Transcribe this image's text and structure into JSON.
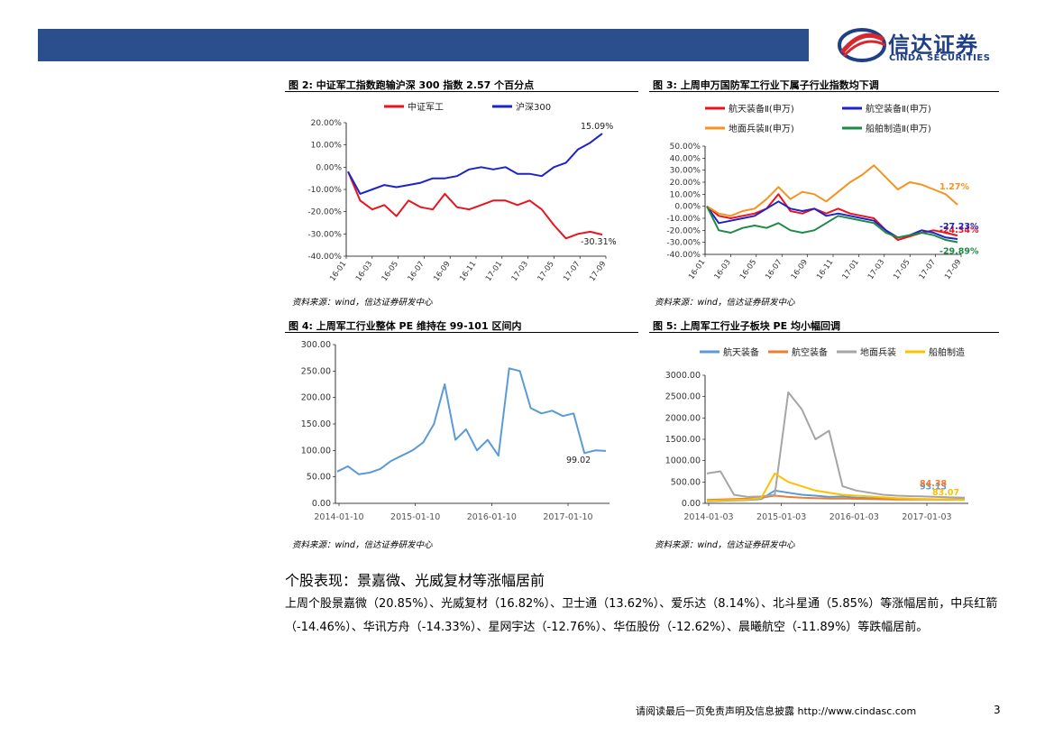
{
  "header": {
    "logo_cn": "信达证券",
    "logo_en": "CINDA SECURITIES"
  },
  "figures": [
    {
      "title": "图 2:  中证军工指数跑输沪深 300 指数 2.57 个百分点",
      "source": "资料来源：wind，信达证券研发中心"
    },
    {
      "title": "图 3:  上周申万国防军工行业下属子行业指数均下调",
      "source": "资料来源：wind，信达证券研发中心"
    },
    {
      "title": "图 4:  上周军工行业整体 PE 维持在 99-101 区间内",
      "source": "资料来源：wind，信达证券研发中心"
    },
    {
      "title": "图 5:  上周军工行业子板块 PE 均小幅回调",
      "source": "资料来源：wind，信达证券研发中心"
    }
  ],
  "section": {
    "heading": "个股表现：景嘉微、光威复材等涨幅居前",
    "body": "上周个股景嘉微（20.85%）、光威复材（16.82%）、卫士通（13.62%）、爱乐达（8.14%）、北斗星通（5.85%）等涨幅居前，中兵红箭（-14.46%）、华讯方舟（-14.33%）、星网宇达（-12.76%）、华伍股份（-12.62%）、晨曦航空（-11.89%）等跌幅居前。"
  },
  "footer": {
    "disclaimer": "请阅读最后一页免责声明及信息披露  http://www.cindasc.com",
    "page": "3"
  },
  "chart_data": [
    {
      "type": "line",
      "legend_position": "top",
      "x_ticks": [
        "16-01",
        "16-03",
        "16-05",
        "16-07",
        "16-09",
        "16-11",
        "17-01",
        "17-03",
        "17-05",
        "17-07",
        "17-09"
      ],
      "y_ticks": [
        "20.00%",
        "10.00%",
        "0.00%",
        "-10.00%",
        "-20.00%",
        "-30.00%",
        "-40.00%"
      ],
      "ylim": [
        -40,
        20
      ],
      "series": [
        {
          "name": "中证军工",
          "color": "#e8141e",
          "end_label": "-30.31%",
          "x": [
            0,
            1,
            2,
            3,
            4,
            5,
            6,
            7,
            8,
            9,
            10,
            11,
            12,
            13,
            14,
            15,
            16,
            17,
            18,
            19,
            20,
            21
          ],
          "values": [
            -2,
            -15,
            -19,
            -17,
            -22,
            -15,
            -18,
            -19,
            -12,
            -18,
            -19,
            -17,
            -15,
            -15,
            -17,
            -15,
            -19,
            -26,
            -32,
            -30,
            -29,
            -30.31
          ]
        },
        {
          "name": "沪深300",
          "color": "#1e23c8",
          "end_label": "15.09%",
          "x": [
            0,
            1,
            2,
            3,
            4,
            5,
            6,
            7,
            8,
            9,
            10,
            11,
            12,
            13,
            14,
            15,
            16,
            17,
            18,
            19,
            20,
            21
          ],
          "values": [
            -2,
            -12,
            -10,
            -8,
            -9,
            -8,
            -7,
            -5,
            -5,
            -4,
            -1,
            0,
            -1,
            0,
            -3,
            -3,
            -4,
            0,
            2,
            8,
            11,
            15.09
          ]
        }
      ]
    },
    {
      "type": "line",
      "legend_position": "top",
      "x_ticks": [
        "16-01",
        "16-03",
        "16-05",
        "16-07",
        "16-09",
        "16-11",
        "17-01",
        "17-03",
        "17-05",
        "17-07",
        "17-09"
      ],
      "y_ticks": [
        "50.00%",
        "40.00%",
        "30.00%",
        "20.00%",
        "10.00%",
        "0.00%",
        "-10.00%",
        "-20.00%",
        "-30.00%",
        "-40.00%"
      ],
      "ylim": [
        -40,
        50
      ],
      "series": [
        {
          "name": "航天装备Ⅱ(申万)",
          "color": "#e8141e",
          "end_label": "-24.34%",
          "x": [
            0,
            1,
            2,
            3,
            4,
            5,
            6,
            7,
            8,
            9,
            10,
            11,
            12,
            13,
            14,
            15,
            16,
            17,
            18,
            19,
            20,
            21
          ],
          "values": [
            0,
            -8,
            -10,
            -8,
            -6,
            -2,
            10,
            -4,
            -6,
            -2,
            -6,
            -2,
            -6,
            -8,
            -10,
            -20,
            -28,
            -25,
            -22,
            -20,
            -22,
            -24.34
          ]
        },
        {
          "name": "航空装备Ⅱ(申万)",
          "color": "#1e23c8",
          "end_label": "-27.23%",
          "x": [
            0,
            1,
            2,
            3,
            4,
            5,
            6,
            7,
            8,
            9,
            10,
            11,
            12,
            13,
            14,
            15,
            16,
            17,
            18,
            19,
            20,
            21
          ],
          "values": [
            0,
            -14,
            -12,
            -10,
            -8,
            -2,
            4,
            -2,
            -4,
            -2,
            -8,
            -6,
            -8,
            -10,
            -12,
            -20,
            -26,
            -24,
            -20,
            -22,
            -26,
            -27.23
          ]
        },
        {
          "name": "地面兵装Ⅱ(申万)",
          "color": "#f7921e",
          "end_label": "1.27%",
          "x": [
            0,
            1,
            2,
            3,
            4,
            5,
            6,
            7,
            8,
            9,
            10,
            11,
            12,
            13,
            14,
            15,
            16,
            17,
            18,
            19,
            20,
            21
          ],
          "values": [
            0,
            -6,
            -8,
            -4,
            -2,
            6,
            16,
            6,
            12,
            10,
            4,
            12,
            20,
            26,
            34,
            24,
            14,
            20,
            18,
            14,
            10,
            1.27
          ]
        },
        {
          "name": "船舶制造Ⅱ(申万)",
          "color": "#1e8a46",
          "end_label": "-29.89%",
          "x": [
            0,
            1,
            2,
            3,
            4,
            5,
            6,
            7,
            8,
            9,
            10,
            11,
            12,
            13,
            14,
            15,
            16,
            17,
            18,
            19,
            20,
            21
          ],
          "values": [
            0,
            -20,
            -22,
            -18,
            -16,
            -18,
            -14,
            -20,
            -22,
            -20,
            -14,
            -8,
            -10,
            -12,
            -14,
            -22,
            -26,
            -24,
            -22,
            -24,
            -28,
            -29.89
          ]
        }
      ]
    },
    {
      "type": "line",
      "x_ticks": [
        "2014-01-10",
        "2015-01-10",
        "2016-01-10",
        "2017-01-10"
      ],
      "y_ticks": [
        "300.00",
        "250.00",
        "200.00",
        "150.00",
        "100.00",
        "50.00",
        "0.00"
      ],
      "ylim": [
        0,
        300
      ],
      "series": [
        {
          "color": "#5b9bd5",
          "end_label": "99.02",
          "x": [
            0,
            1,
            2,
            3,
            4,
            5,
            6,
            7,
            8,
            9,
            10,
            11,
            12,
            13,
            14,
            15,
            16,
            17,
            18,
            19,
            20,
            21,
            22,
            23,
            24,
            25
          ],
          "values": [
            60,
            70,
            55,
            58,
            65,
            80,
            90,
            100,
            115,
            150,
            225,
            120,
            140,
            100,
            120,
            90,
            255,
            250,
            180,
            170,
            175,
            165,
            170,
            95,
            100,
            99.02
          ]
        }
      ]
    },
    {
      "type": "line",
      "legend_position": "top",
      "x_ticks": [
        "2014-01-03",
        "2015-01-03",
        "2016-01-03",
        "2017-01-03"
      ],
      "y_ticks": [
        "3000.00",
        "2500.00",
        "2000.00",
        "1500.00",
        "1000.00",
        "500.00",
        "0.00"
      ],
      "ylim": [
        0,
        3000
      ],
      "series": [
        {
          "name": "航天装备",
          "color": "#5b9bd5",
          "end_label": "93.13",
          "x": [
            0,
            1,
            2,
            3,
            4,
            5,
            6,
            7,
            8,
            9,
            10,
            11,
            12,
            13,
            14,
            15,
            16,
            17,
            18,
            19
          ],
          "values": [
            50,
            60,
            70,
            80,
            100,
            300,
            250,
            200,
            180,
            150,
            160,
            130,
            120,
            110,
            105,
            100,
            98,
            95,
            94,
            93.13
          ]
        },
        {
          "name": "航空装备",
          "color": "#ed7d31",
          "end_label": "84.38",
          "x": [
            0,
            1,
            2,
            3,
            4,
            5,
            6,
            7,
            8,
            9,
            10,
            11,
            12,
            13,
            14,
            15,
            16,
            17,
            18,
            19
          ],
          "values": [
            80,
            90,
            100,
            110,
            130,
            180,
            150,
            130,
            120,
            110,
            115,
            105,
            100,
            95,
            90,
            90,
            88,
            86,
            85,
            84.38
          ]
        },
        {
          "name": "地面兵装",
          "color": "#a5a5a5",
          "end_label": "",
          "x": [
            0,
            1,
            2,
            3,
            4,
            5,
            6,
            7,
            8,
            9,
            10,
            11,
            12,
            13,
            14,
            15,
            16,
            17,
            18,
            19
          ],
          "values": [
            700,
            750,
            200,
            150,
            160,
            200,
            2600,
            2200,
            1500,
            1700,
            400,
            300,
            250,
            200,
            180,
            170,
            160,
            150,
            140,
            130
          ]
        },
        {
          "name": "船舶制造",
          "color": "#ffc000",
          "end_label": "83.07",
          "x": [
            0,
            1,
            2,
            3,
            4,
            5,
            6,
            7,
            8,
            9,
            10,
            11,
            12,
            13,
            14,
            15,
            16,
            17,
            18,
            19
          ],
          "values": [
            60,
            70,
            80,
            90,
            120,
            700,
            500,
            400,
            300,
            250,
            200,
            180,
            160,
            140,
            120,
            110,
            100,
            95,
            90,
            83.07
          ]
        }
      ]
    }
  ]
}
